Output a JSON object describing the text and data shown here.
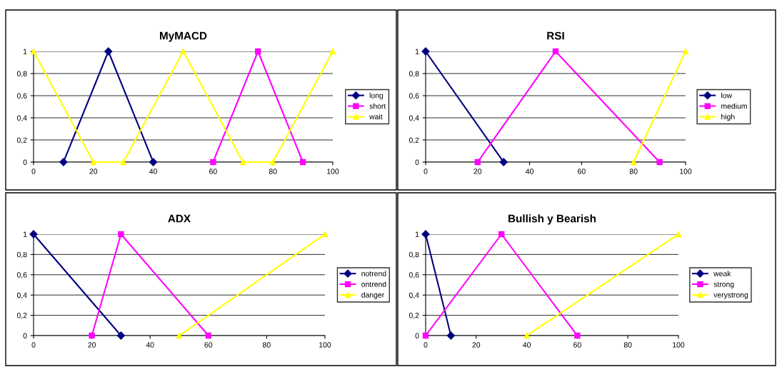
{
  "chart_data": [
    {
      "type": "line",
      "title": "MyMACD",
      "xlim": [
        0,
        100
      ],
      "xticks": [
        0,
        20,
        40,
        60,
        80,
        100
      ],
      "ylim": [
        0,
        1
      ],
      "yticks": [
        0,
        {
          "value": 0.2,
          "label": "0,2"
        },
        {
          "value": 0.4,
          "label": "0,4"
        },
        {
          "value": 0.6,
          "label": "0,6"
        },
        {
          "value": 0.8,
          "label": "0,8"
        },
        1
      ],
      "grid": "y",
      "legend": "right",
      "series": [
        {
          "name": "long",
          "color": "#000080",
          "marker": "diamond",
          "x": [
            10,
            25,
            40
          ],
          "values": [
            0,
            1,
            0
          ]
        },
        {
          "name": "short",
          "color": "#ff00ff",
          "marker": "square",
          "x": [
            60,
            75,
            90
          ],
          "values": [
            0,
            1,
            0
          ]
        },
        {
          "name": "wait",
          "color": "#ffff00",
          "marker": "triangle",
          "x": [
            0,
            20,
            30,
            50,
            70,
            80,
            100
          ],
          "values": [
            1,
            0,
            0,
            1,
            0,
            0,
            1
          ]
        }
      ]
    },
    {
      "type": "line",
      "title": "RSI",
      "xlim": [
        0,
        100
      ],
      "xticks": [
        0,
        20,
        40,
        60,
        80,
        100
      ],
      "ylim": [
        0,
        1
      ],
      "yticks": [
        0,
        {
          "value": 0.2,
          "label": "0,2"
        },
        {
          "value": 0.4,
          "label": "0,4"
        },
        {
          "value": 0.6,
          "label": "0,6"
        },
        {
          "value": 0.8,
          "label": "0,8"
        },
        1
      ],
      "grid": "y",
      "legend": "right",
      "series": [
        {
          "name": "low",
          "color": "#000080",
          "marker": "diamond",
          "x": [
            0,
            30
          ],
          "values": [
            1,
            0
          ]
        },
        {
          "name": "medium",
          "color": "#ff00ff",
          "marker": "square",
          "x": [
            20,
            50,
            90
          ],
          "values": [
            0,
            1,
            0
          ]
        },
        {
          "name": "high",
          "color": "#ffff00",
          "marker": "triangle",
          "x": [
            80,
            100
          ],
          "values": [
            0,
            1
          ]
        }
      ]
    },
    {
      "type": "line",
      "title": "ADX",
      "xlim": [
        0,
        100
      ],
      "xticks": [
        0,
        20,
        40,
        60,
        80,
        100
      ],
      "ylim": [
        0,
        1
      ],
      "yticks": [
        0,
        {
          "value": 0.2,
          "label": "0,2"
        },
        {
          "value": 0.4,
          "label": "0,4"
        },
        {
          "value": 0.6,
          "label": "0,6"
        },
        {
          "value": 0.8,
          "label": "0,8"
        },
        1
      ],
      "grid": "y",
      "legend": "right",
      "series": [
        {
          "name": "notrend",
          "color": "#000080",
          "marker": "diamond",
          "x": [
            0,
            30
          ],
          "values": [
            1,
            0
          ]
        },
        {
          "name": "ontrend",
          "color": "#ff00ff",
          "marker": "square",
          "x": [
            20,
            30,
            60
          ],
          "values": [
            0,
            1,
            0
          ]
        },
        {
          "name": "danger",
          "color": "#ffff00",
          "marker": "triangle",
          "x": [
            50,
            100
          ],
          "values": [
            0,
            1
          ]
        }
      ]
    },
    {
      "type": "line",
      "title": "Bullish y Bearish",
      "xlim": [
        0,
        100
      ],
      "xticks": [
        0,
        20,
        40,
        60,
        80,
        100
      ],
      "ylim": [
        0,
        1
      ],
      "yticks": [
        0,
        {
          "value": 0.2,
          "label": "0,2"
        },
        {
          "value": 0.4,
          "label": "0,4"
        },
        {
          "value": 0.6,
          "label": "0,6"
        },
        {
          "value": 0.8,
          "label": "0,8"
        },
        1
      ],
      "grid": "y",
      "legend": "right",
      "series": [
        {
          "name": "weak",
          "color": "#000080",
          "marker": "diamond",
          "x": [
            0,
            10
          ],
          "values": [
            1,
            0
          ]
        },
        {
          "name": "strong",
          "color": "#ff00ff",
          "marker": "square",
          "x": [
            0,
            30,
            60
          ],
          "values": [
            0,
            1,
            0
          ]
        },
        {
          "name": "verystrong",
          "color": "#ffff00",
          "marker": "triangle",
          "x": [
            40,
            100
          ],
          "values": [
            0,
            1
          ]
        }
      ]
    }
  ]
}
